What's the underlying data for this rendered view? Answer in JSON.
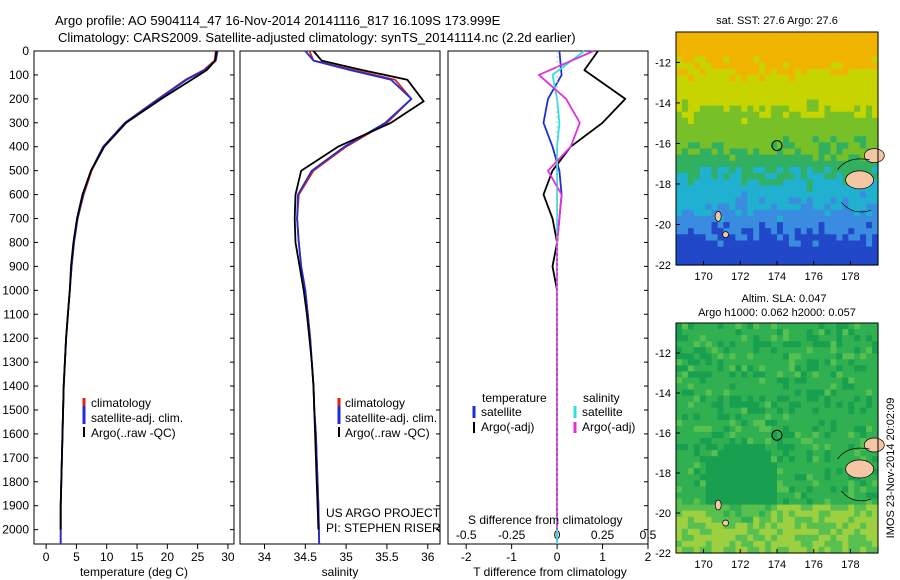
{
  "header": {
    "line1": "Argo profile: AO 5904114_47 16-Nov-2014 20141116_817 16.109S 173.999E",
    "line2": "Climatology: CARS2009. Satellite-adjusted climatology: synTS_20141114.nc (2.2d earlier)"
  },
  "colors": {
    "climatology": "#e0201c",
    "satellite": "#1f2fd0",
    "argo": "#000000",
    "sal_satellite": "#30e0e0",
    "sal_argo": "#e030e0",
    "land": "#f5c6a4"
  },
  "depth_ticks": [
    "0",
    "100",
    "200",
    "300",
    "400",
    "500",
    "600",
    "700",
    "800",
    "900",
    "1000",
    "1100",
    "1200",
    "1300",
    "1400",
    "1500",
    "1600",
    "1700",
    "1800",
    "1900",
    "2000"
  ],
  "chart_data": [
    {
      "type": "line",
      "title": "",
      "xlabel": "temperature (deg C)",
      "ylabel": "",
      "xlim": [
        -2,
        31
      ],
      "ylim": [
        2060,
        0
      ],
      "x_ticks": [
        "0",
        "5",
        "10",
        "15",
        "20",
        "25",
        "30"
      ],
      "legend": [
        "climatology",
        "satellite-adj. clim.",
        "Argo(..raw -QC)"
      ],
      "legend_position": "bottom-right",
      "series": [
        {
          "name": "climatology",
          "x": [
            28.0,
            27.8,
            26.0,
            23.0,
            18.5,
            13.0,
            9.5,
            7.5,
            6.2,
            5.2,
            4.6,
            4.2,
            3.9,
            3.6,
            3.3,
            3.1,
            2.9,
            2.8,
            2.7,
            2.6,
            2.5,
            2.4,
            2.4
          ],
          "y": [
            0,
            40,
            80,
            120,
            200,
            300,
            400,
            500,
            600,
            700,
            800,
            900,
            1000,
            1100,
            1200,
            1300,
            1400,
            1500,
            1600,
            1700,
            1800,
            1900,
            2060
          ]
        },
        {
          "name": "satellite-adj. clim.",
          "x": [
            28.3,
            28.0,
            26.2,
            23.2,
            18.6,
            13.0,
            9.4,
            7.4,
            6.1,
            5.2,
            4.6,
            4.2,
            3.9,
            3.6,
            3.3,
            3.1,
            2.9,
            2.8,
            2.7,
            2.6,
            2.5,
            2.4,
            2.4
          ],
          "y": [
            0,
            40,
            80,
            120,
            200,
            300,
            400,
            500,
            600,
            700,
            800,
            900,
            1000,
            1100,
            1200,
            1300,
            1400,
            1500,
            1600,
            1700,
            1800,
            1900,
            2060
          ]
        },
        {
          "name": "Argo(..raw -QC)",
          "x": [
            28.1,
            27.9,
            26.5,
            24.0,
            19.0,
            13.2,
            9.6,
            7.4,
            6.0,
            5.1,
            4.5,
            4.1,
            3.9,
            3.6,
            3.3,
            3.1,
            2.9,
            2.8,
            2.7,
            2.6,
            2.5,
            2.4,
            2.4
          ],
          "y": [
            0,
            40,
            80,
            120,
            200,
            300,
            400,
            500,
            600,
            700,
            800,
            900,
            1000,
            1100,
            1200,
            1300,
            1400,
            1500,
            1600,
            1700,
            1800,
            1900,
            2000
          ]
        }
      ]
    },
    {
      "type": "line",
      "title": "",
      "xlabel": "salinity",
      "ylabel": "",
      "xlim": [
        33.7,
        36.15
      ],
      "ylim": [
        2060,
        0
      ],
      "x_ticks": [
        "34",
        "34.5",
        "35",
        "35.5",
        "36"
      ],
      "legend": [
        "climatology",
        "satellite-adj. clim.",
        "Argo(..raw -QC)"
      ],
      "legend_position": "bottom-right",
      "annotation_1": "US ARGO PROJECT",
      "annotation_2": "PI: STEPHEN RISER",
      "series": [
        {
          "name": "climatology",
          "x": [
            34.55,
            34.6,
            35.1,
            35.6,
            35.8,
            35.5,
            35.0,
            34.6,
            34.42,
            34.4,
            34.42,
            34.45,
            34.5,
            34.53,
            34.56,
            34.58,
            34.6,
            34.61,
            34.63,
            34.64,
            34.65,
            34.66,
            34.67
          ],
          "y": [
            0,
            40,
            80,
            120,
            200,
            300,
            400,
            500,
            600,
            700,
            800,
            900,
            1000,
            1100,
            1200,
            1300,
            1400,
            1500,
            1600,
            1700,
            1800,
            1900,
            2060
          ]
        },
        {
          "name": "satellite-adj. clim.",
          "x": [
            34.5,
            34.6,
            35.05,
            35.55,
            35.8,
            35.48,
            34.98,
            34.58,
            34.41,
            34.4,
            34.42,
            34.45,
            34.5,
            34.53,
            34.56,
            34.58,
            34.6,
            34.61,
            34.63,
            34.64,
            34.65,
            34.66,
            34.67
          ],
          "y": [
            0,
            40,
            80,
            120,
            200,
            300,
            400,
            500,
            600,
            700,
            800,
            900,
            1000,
            1100,
            1200,
            1300,
            1400,
            1500,
            1600,
            1700,
            1800,
            1900,
            2060
          ]
        },
        {
          "name": "Argo(..raw -QC)",
          "x": [
            34.6,
            34.7,
            35.2,
            35.75,
            35.95,
            35.55,
            34.9,
            34.45,
            34.38,
            34.37,
            34.38,
            34.43,
            34.48,
            34.52,
            34.55,
            34.58,
            34.6,
            34.61,
            34.62,
            34.63,
            34.64,
            34.65,
            34.66
          ],
          "y": [
            0,
            40,
            80,
            120,
            210,
            300,
            400,
            500,
            600,
            700,
            800,
            900,
            1000,
            1100,
            1200,
            1300,
            1400,
            1500,
            1600,
            1700,
            1800,
            1900,
            2000
          ]
        }
      ]
    },
    {
      "type": "line",
      "title": "",
      "xlabel": "T difference from climatology",
      "xlabel2": "S difference from climatology",
      "xlim": [
        -2.4,
        2.0
      ],
      "ylim": [
        2060,
        0
      ],
      "x_ticks": [
        "-2",
        "-1",
        "0",
        "1",
        "2"
      ],
      "top_ticks": [
        "-0.5",
        "-0.25",
        "0",
        "0.25",
        "0.5"
      ],
      "legend_temperature": "temperature",
      "legend_salinity": "salinity",
      "legend": [
        "satellite",
        "Argo(-adj)",
        "satellite",
        "Argo(-adj)"
      ],
      "legend_position": "bottom",
      "series": [
        {
          "name": "satellite",
          "x": [
            0.05,
            0.1,
            -0.2,
            -0.3,
            -0.1,
            0.05,
            0.1,
            0.05,
            0.0,
            0.0,
            0.0,
            0.0,
            0.0,
            0.0,
            0.0,
            0.0,
            0.0,
            0.0,
            0.0,
            0.0
          ],
          "y": [
            0,
            100,
            200,
            300,
            400,
            500,
            600,
            700,
            800,
            900,
            1000,
            1200,
            1400,
            1600,
            1800,
            1900,
            2000,
            2050,
            2060,
            2060
          ]
        },
        {
          "name": "Argo(-adj)",
          "x": [
            0.9,
            0.6,
            1.5,
            1.0,
            0.3,
            -0.1,
            -0.3,
            -0.1,
            0.0,
            -0.1,
            0.0,
            0.0,
            0.0,
            0.0,
            0.0,
            0.0,
            0.0
          ],
          "y": [
            0,
            80,
            200,
            300,
            400,
            500,
            600,
            700,
            800,
            900,
            1000,
            1200,
            1400,
            1600,
            1800,
            1900,
            2000
          ]
        },
        {
          "name": "satellite",
          "x": [
            0.6,
            -0.1,
            0.0,
            0.05,
            0.0,
            0.0,
            0.0,
            0.0,
            0.0,
            0.0,
            0.0,
            0.0,
            0.0,
            0.0
          ],
          "y": [
            0,
            100,
            200,
            300,
            400,
            500,
            600,
            800,
            1000,
            1200,
            1400,
            1600,
            1800,
            2060
          ]
        },
        {
          "name": "Argo(-adj)",
          "x": [
            0.8,
            -0.4,
            0.2,
            0.5,
            0.3,
            -0.2,
            0.1,
            0.0,
            0.0,
            0.0,
            0.0,
            0.0,
            0.0,
            0.0
          ],
          "y": [
            0,
            100,
            200,
            300,
            400,
            500,
            600,
            800,
            1000,
            1200,
            1400,
            1600,
            1800,
            2000
          ]
        }
      ]
    },
    {
      "type": "heatmap",
      "title": "sat. SST: 27.6 Argo: 27.6",
      "xlim": [
        168.5,
        179.5
      ],
      "ylim": [
        -22,
        -10.5
      ],
      "x_ticks": [
        "170",
        "172",
        "174",
        "176",
        "178"
      ],
      "y_ticks": [
        "-12",
        "-14",
        "-16",
        "-18",
        "-20",
        "-22"
      ],
      "profile_lon": 173.999,
      "profile_lat": -16.109
    },
    {
      "type": "heatmap",
      "title_1": "Altim. SLA: 0.047",
      "title_2": "Argo h1000: 0.062 h2000: 0.057",
      "xlim": [
        168.5,
        179.5
      ],
      "ylim": [
        -22,
        -10.5
      ],
      "x_ticks": [
        "170",
        "172",
        "174",
        "176",
        "178"
      ],
      "y_ticks": [
        "-12",
        "-14",
        "-16",
        "-18",
        "-20",
        "-22"
      ],
      "profile_lon": 173.999,
      "profile_lat": -16.109
    }
  ],
  "footer": {
    "stamp": "IMOS 23-Nov-2014 20:02:09"
  }
}
